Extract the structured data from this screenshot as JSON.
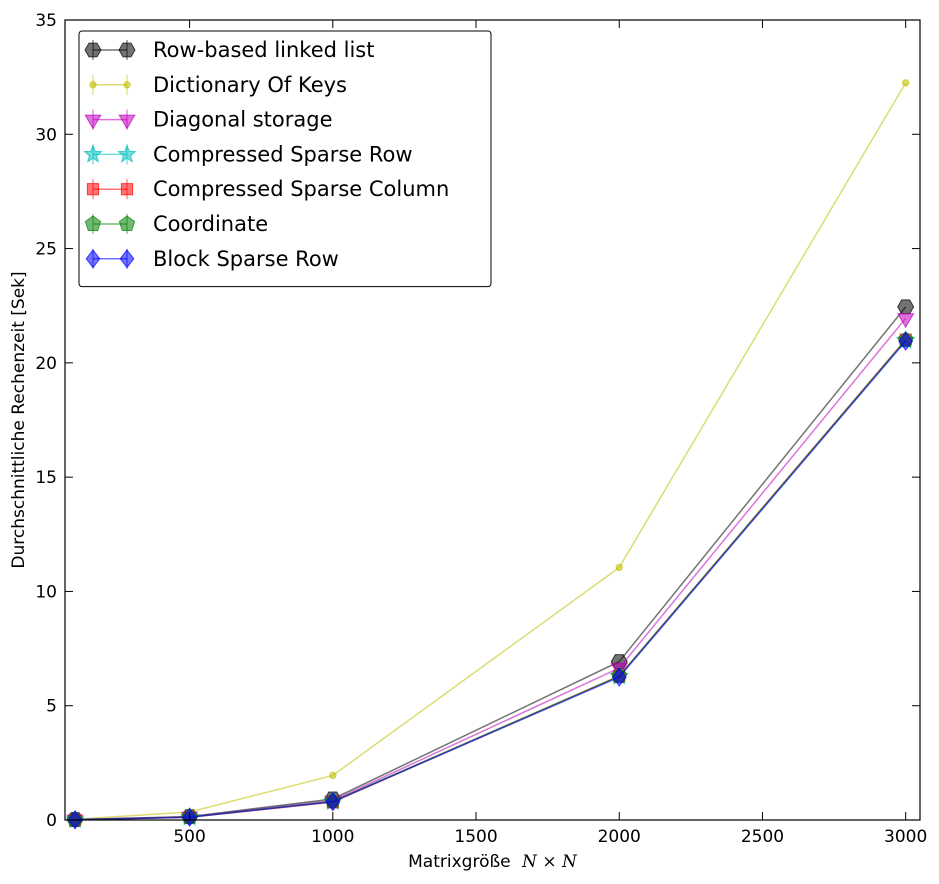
{
  "chart_data": {
    "type": "line",
    "title": "",
    "xlabel": "Matrixgröße",
    "xlabel_math": "N × N",
    "ylabel": "Durchschnittliche Rechenzeit [Sek]",
    "xlim": [
      65,
      3050
    ],
    "ylim": [
      0,
      35
    ],
    "xticks": [
      500,
      1000,
      1500,
      2000,
      2500,
      3000
    ],
    "yticks": [
      0,
      5,
      10,
      15,
      20,
      25,
      30,
      35
    ],
    "grid": false,
    "legend_position": "top-left",
    "x": [
      100,
      500,
      1000,
      2000,
      3000
    ],
    "series": [
      {
        "name": "Row-based linked list",
        "marker": "hexagon",
        "color": "#000000",
        "values": [
          0.02,
          0.15,
          0.92,
          6.93,
          22.45
        ]
      },
      {
        "name": "Dictionary Of Keys",
        "marker": "point",
        "color": "#bfbf00",
        "values": [
          0.03,
          0.35,
          1.95,
          11.05,
          32.25
        ]
      },
      {
        "name": "Diagonal storage",
        "marker": "triangle-down",
        "color": "#bf00bf",
        "values": [
          0.02,
          0.14,
          0.85,
          6.65,
          21.95
        ]
      },
      {
        "name": "Compressed Sparse Row",
        "marker": "star",
        "color": "#00bfbf",
        "values": [
          0.01,
          0.12,
          0.8,
          6.28,
          20.98
        ]
      },
      {
        "name": "Compressed Sparse Column",
        "marker": "square",
        "color": "#ff0000",
        "values": [
          0.01,
          0.12,
          0.78,
          6.3,
          21.02
        ]
      },
      {
        "name": "Coordinate",
        "marker": "pentagon",
        "color": "#008000",
        "values": [
          0.01,
          0.13,
          0.82,
          6.3,
          21.0
        ]
      },
      {
        "name": "Block Sparse Row",
        "marker": "diamond",
        "color": "#0000ff",
        "values": [
          0.01,
          0.12,
          0.8,
          6.25,
          20.95
        ]
      }
    ]
  }
}
